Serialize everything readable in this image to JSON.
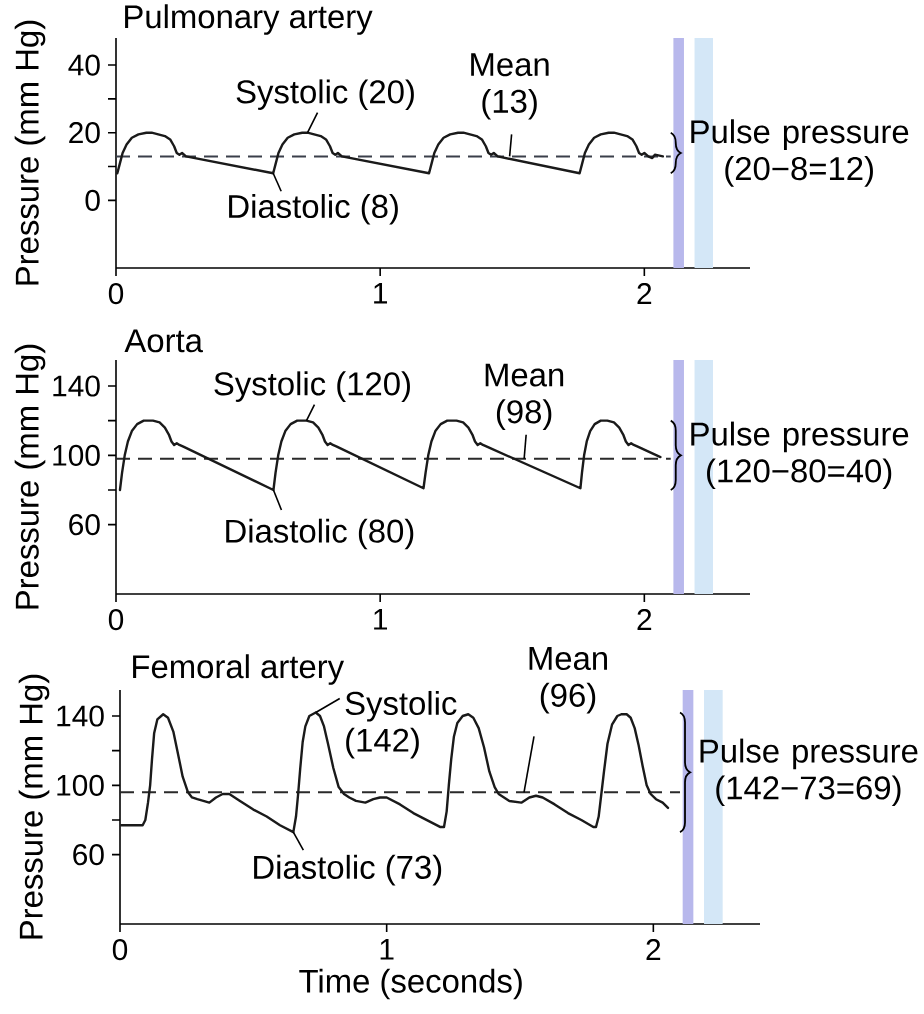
{
  "chart_data": [
    {
      "type": "line",
      "title": "Pulmonary artery",
      "ylabel": "Pressure (mm Hg)",
      "color": "#1a1a1a",
      "x": [
        0.005,
        0.015,
        0.025,
        0.04,
        0.06,
        0.085,
        0.115,
        0.135,
        0.16,
        0.185,
        0.205,
        0.22,
        0.23,
        0.24,
        0.25,
        0.265,
        0.595,
        0.605,
        0.615,
        0.63,
        0.65,
        0.675,
        0.705,
        0.725,
        0.75,
        0.775,
        0.795,
        0.81,
        0.82,
        0.83,
        0.84,
        0.855,
        1.185,
        1.195,
        1.205,
        1.22,
        1.24,
        1.265,
        1.295,
        1.315,
        1.34,
        1.365,
        1.385,
        1.4,
        1.41,
        1.42,
        1.43,
        1.445,
        1.755,
        1.765,
        1.775,
        1.79,
        1.81,
        1.835,
        1.865,
        1.885,
        1.91,
        1.935,
        1.955,
        1.97,
        1.98,
        1.99,
        2.0,
        2.015,
        2.03,
        2.04,
        2.07
      ],
      "values": [
        8,
        11,
        14,
        16.5,
        18.5,
        19.5,
        20,
        20,
        19.5,
        19,
        18,
        16,
        14,
        13.5,
        14,
        13,
        8,
        11,
        14,
        16.5,
        18.5,
        19.5,
        20,
        20,
        19.5,
        19,
        18,
        16,
        14,
        13.5,
        14,
        13,
        8,
        11,
        14,
        16.5,
        18.5,
        19.5,
        20,
        20,
        19.5,
        19,
        18,
        16,
        14,
        13.5,
        14,
        13,
        8,
        11,
        14,
        16.5,
        18.5,
        19.5,
        20,
        20,
        19.5,
        19,
        18,
        16,
        14,
        13.5,
        14,
        13,
        12.5,
        13.5,
        13
      ],
      "xlim": [
        0,
        2.4
      ],
      "ylim": [
        -20,
        48
      ],
      "xticks": [
        0,
        1,
        2
      ],
      "yticks": [
        0,
        20,
        40,
        {
          "value": 10,
          "label": null
        },
        {
          "value": 30,
          "label": null
        }
      ],
      "ref_lines": [
        {
          "axis": "y",
          "value": 13,
          "line_style": "dashed",
          "color": "#3a3f4a"
        }
      ],
      "bands": [
        {
          "axis": "x",
          "from": 2.11,
          "to": 2.15,
          "color": "#b8b8ec"
        },
        {
          "axis": "x",
          "from": 2.19,
          "to": 2.26,
          "color": "#d4e7f7"
        }
      ],
      "annotations": [
        {
          "text": "Systolic (20)",
          "x": 0.725,
          "y": 20
        },
        {
          "text": "Mean (13)",
          "x": 1.49,
          "y": 13
        },
        {
          "text": "Diastolic (8)",
          "x": 0.595,
          "y": 8
        },
        {
          "text": "Pulse pressure (20−8=12)",
          "x": 2.1,
          "y": 14
        }
      ]
    },
    {
      "type": "line",
      "title": "Aorta",
      "ylabel": "Pressure (mm Hg)",
      "color": "#1a1a1a",
      "x": [
        0.015,
        0.023,
        0.033,
        0.045,
        0.06,
        0.08,
        0.105,
        0.14,
        0.165,
        0.185,
        0.2,
        0.21,
        0.22,
        0.23,
        0.24,
        0.255,
        0.596,
        0.604,
        0.614,
        0.626,
        0.641,
        0.661,
        0.686,
        0.721,
        0.746,
        0.766,
        0.781,
        0.791,
        0.801,
        0.811,
        0.821,
        0.836,
        1.164,
        1.172,
        1.182,
        1.194,
        1.209,
        1.229,
        1.254,
        1.289,
        1.314,
        1.334,
        1.349,
        1.359,
        1.369,
        1.379,
        1.389,
        1.404,
        1.758,
        1.764,
        1.772,
        1.782,
        1.795,
        1.812,
        1.835,
        1.86,
        1.885,
        1.905,
        1.92,
        1.93,
        1.94,
        1.95,
        1.96,
        1.975,
        2.061
      ],
      "values": [
        80,
        90,
        100,
        108,
        114,
        118,
        120,
        120,
        119,
        116,
        112,
        108,
        106,
        107,
        106,
        105,
        80,
        90,
        100,
        108,
        114,
        118,
        120,
        120,
        119,
        116,
        112,
        108,
        106,
        107,
        106,
        105,
        81,
        90,
        100,
        108,
        114,
        118,
        120,
        120,
        119,
        116,
        112,
        108,
        106,
        107,
        106,
        105,
        81,
        90,
        100,
        108,
        114,
        118,
        120,
        120,
        119,
        116,
        112,
        108,
        106,
        107,
        106,
        105,
        99
      ],
      "xlim": [
        0,
        2.4
      ],
      "ylim": [
        20,
        155
      ],
      "xticks": [
        0,
        1,
        2
      ],
      "yticks": [
        60,
        100,
        140,
        {
          "value": 80,
          "label": null
        },
        {
          "value": 120,
          "label": null
        }
      ],
      "ref_lines": [
        {
          "axis": "y",
          "value": 98,
          "line_style": "dashed",
          "color": "#2a2a2a"
        }
      ],
      "bands": [
        {
          "axis": "x",
          "from": 2.11,
          "to": 2.15,
          "color": "#b8b8ec"
        },
        {
          "axis": "x",
          "from": 2.19,
          "to": 2.26,
          "color": "#d4e7f7"
        }
      ],
      "annotations": [
        {
          "text": "Systolic (120)",
          "x": 0.721,
          "y": 120
        },
        {
          "text": "Mean (98)",
          "x": 1.545,
          "y": 98
        },
        {
          "text": "Diastolic (80)",
          "x": 0.596,
          "y": 80
        },
        {
          "text": "Pulse pressure (120−80=40)",
          "x": 2.1,
          "y": 100
        }
      ]
    },
    {
      "type": "line",
      "title": "Femoral artery",
      "xlabel": "Time (seconds)",
      "ylabel": "Pressure (mm Hg)",
      "color": "#1a1a1a",
      "x": [
        0.005,
        0.085,
        0.095,
        0.105,
        0.113,
        0.12,
        0.128,
        0.14,
        0.162,
        0.18,
        0.2,
        0.215,
        0.235,
        0.255,
        0.27,
        0.29,
        0.335,
        0.36,
        0.385,
        0.41,
        0.45,
        0.5,
        0.55,
        0.6,
        0.65,
        0.66,
        0.668,
        0.676,
        0.685,
        0.695,
        0.71,
        0.734,
        0.75,
        0.765,
        0.78,
        0.8,
        0.82,
        0.84,
        0.86,
        0.885,
        0.92,
        0.95,
        0.975,
        1.0,
        1.05,
        1.1,
        1.15,
        1.2,
        1.215,
        1.225,
        1.233,
        1.242,
        1.252,
        1.265,
        1.285,
        1.306,
        1.325,
        1.345,
        1.365,
        1.385,
        1.405,
        1.42,
        1.44,
        1.46,
        1.505,
        1.535,
        1.56,
        1.585,
        1.63,
        1.68,
        1.73,
        1.775,
        1.785,
        1.795,
        1.805,
        1.815,
        1.828,
        1.845,
        1.865,
        1.88,
        1.9,
        1.915,
        1.93,
        1.945,
        1.96,
        1.975,
        1.99,
        2.01,
        2.035,
        2.055
      ],
      "values": [
        77,
        77,
        80,
        90,
        100,
        115,
        130,
        138,
        141,
        139,
        131,
        120,
        105,
        96,
        93,
        92,
        90,
        93,
        95,
        95,
        91,
        86,
        82,
        77,
        73,
        82,
        95,
        110,
        125,
        134,
        140,
        142,
        140,
        134,
        124,
        110,
        99,
        95,
        93,
        91,
        90,
        92,
        93,
        93,
        89,
        84,
        80,
        76,
        76,
        85,
        100,
        115,
        128,
        136,
        140,
        141,
        139,
        133,
        122,
        108,
        99,
        95,
        93,
        91,
        90,
        93,
        94,
        93,
        89,
        84,
        80,
        76,
        76,
        82,
        95,
        108,
        124,
        135,
        140,
        141,
        141,
        139,
        133,
        123,
        111,
        100,
        95,
        92,
        90,
        87
      ],
      "xlim": [
        0,
        2.4
      ],
      "ylim": [
        20,
        155
      ],
      "xticks": [
        0,
        1,
        2
      ],
      "yticks": [
        60,
        100,
        140,
        {
          "value": 80,
          "label": null
        },
        {
          "value": 120,
          "label": null
        }
      ],
      "ref_lines": [
        {
          "axis": "y",
          "value": 96,
          "line_style": "dashed",
          "color": "#2a2a2a"
        }
      ],
      "bands": [
        {
          "axis": "x",
          "from": 2.11,
          "to": 2.15,
          "color": "#b8b8ec"
        },
        {
          "axis": "x",
          "from": 2.19,
          "to": 2.26,
          "color": "#d4e7f7"
        }
      ],
      "annotations": [
        {
          "text": "Systolic (142)",
          "x": 0.734,
          "y": 142
        },
        {
          "text": "Mean (96)",
          "x": 1.515,
          "y": 96
        },
        {
          "text": "Diastolic (73)",
          "x": 0.65,
          "y": 73
        },
        {
          "text": "Pulse pressure (142−73=69)",
          "x": 2.1,
          "y": 107.5
        }
      ]
    }
  ]
}
